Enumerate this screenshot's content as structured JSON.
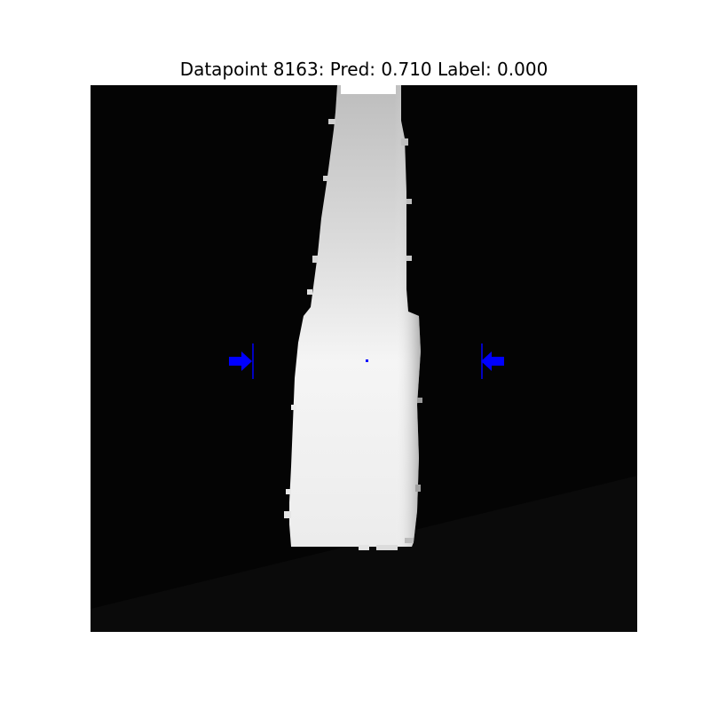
{
  "figure": {
    "title": "Datapoint 8163: Pred: 0.710 Label: 0.000",
    "datapoint_id": 8163,
    "prediction": 0.71,
    "label": 0.0
  },
  "image": {
    "description_icon": "depth-image-of-bottle",
    "background_color": "#050505",
    "object_color": "#f2f2f2",
    "marker_color": "#0000ff"
  }
}
